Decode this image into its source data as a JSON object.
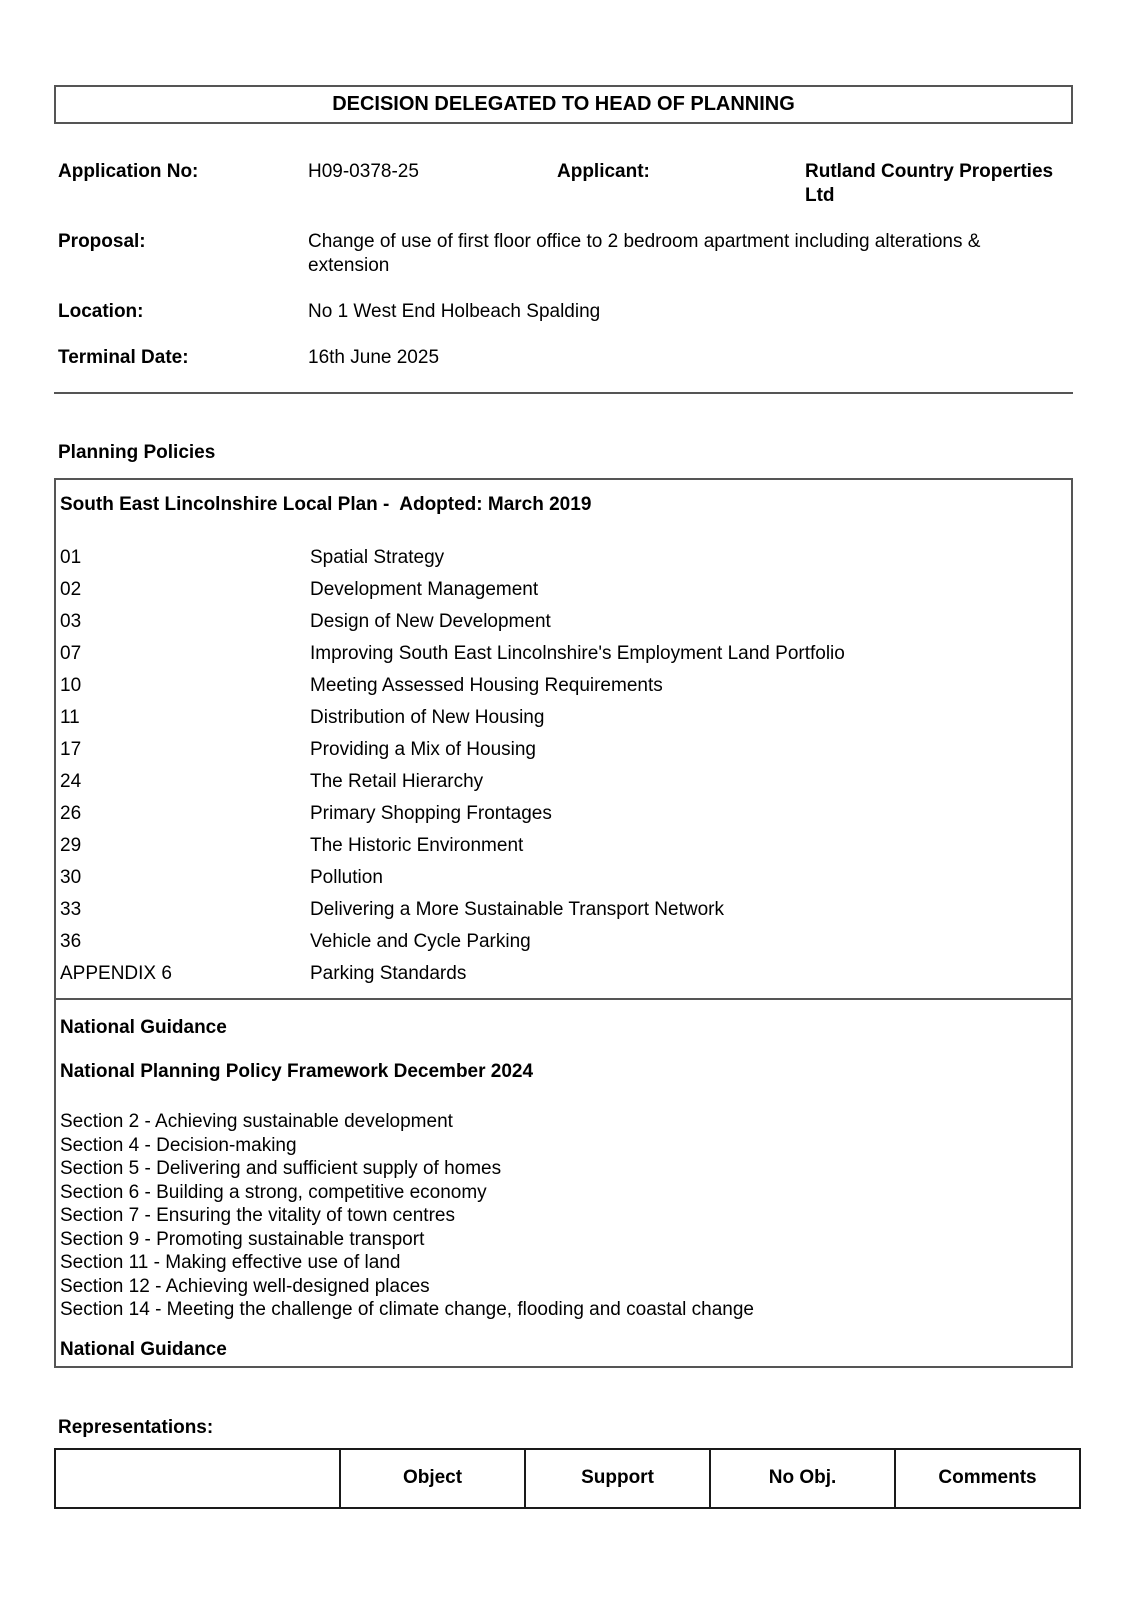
{
  "colors": {
    "page_background": "#ffffff",
    "text": "#000000",
    "border": "#555555"
  },
  "header": {
    "title": "DECISION DELEGATED TO HEAD OF PLANNING"
  },
  "meta": {
    "application_no_label": "Application No:",
    "application_no": "H09-0378-25",
    "applicant_label": "Applicant:",
    "applicant": "Rutland Country Properties Ltd",
    "proposal_label": "Proposal:",
    "proposal": "Change of use of first floor office to 2 bedroom apartment including alterations & extension",
    "location_label": "Location:",
    "location": "No 1 West End Holbeach Spalding",
    "terminal_date_label": "Terminal Date:",
    "terminal_date": "16th June 2025"
  },
  "planning_policies": {
    "heading": "Planning Policies",
    "plan_title": "South East Lincolnshire Local Plan -  Adopted: March 2019",
    "policies": [
      {
        "code": "01",
        "name": "Spatial Strategy"
      },
      {
        "code": "02",
        "name": "Development Management"
      },
      {
        "code": "03",
        "name": "Design of New Development"
      },
      {
        "code": "07",
        "name": "Improving South East Lincolnshire's Employment Land Portfolio"
      },
      {
        "code": "10",
        "name": "Meeting Assessed Housing Requirements"
      },
      {
        "code": "11",
        "name": "Distribution of New Housing"
      },
      {
        "code": "17",
        "name": "Providing a Mix of Housing"
      },
      {
        "code": "24",
        "name": "The Retail Hierarchy"
      },
      {
        "code": "26",
        "name": "Primary Shopping Frontages"
      },
      {
        "code": "29",
        "name": "The Historic Environment"
      },
      {
        "code": "30",
        "name": "Pollution"
      },
      {
        "code": "33",
        "name": "Delivering a More Sustainable Transport Network"
      },
      {
        "code": "36",
        "name": "Vehicle and Cycle Parking"
      },
      {
        "code": "APPENDIX 6",
        "name": "Parking Standards"
      }
    ],
    "national_guidance": {
      "heading": "National Guidance",
      "framework_title": "National Planning Policy Framework December 2024",
      "sections": [
        "Section 2 - Achieving sustainable development",
        "Section 4 - Decision-making",
        "Section 5 - Delivering and sufficient supply of homes",
        "Section 6 - Building a strong, competitive economy",
        "Section 7 - Ensuring the vitality of town centres",
        "Section 9 - Promoting sustainable transport",
        "Section 11 - Making effective use of land",
        "Section 12 - Achieving well-designed places",
        "Section 14 - Meeting the challenge of climate change, flooding and coastal change"
      ],
      "footer_heading": "National Guidance"
    }
  },
  "representations": {
    "heading": "Representations:",
    "columns": [
      "Object",
      "Support",
      "No Obj.",
      "Comments"
    ]
  }
}
